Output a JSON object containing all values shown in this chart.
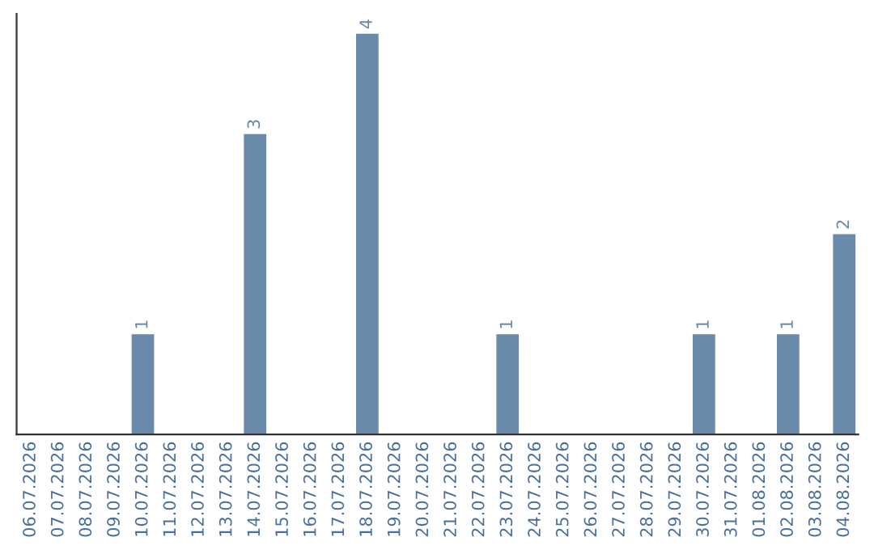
{
  "chart_data": {
    "type": "bar",
    "categories": [
      "06.07.2026",
      "07.07.2026",
      "08.07.2026",
      "09.07.2026",
      "10.07.2026",
      "11.07.2026",
      "12.07.2026",
      "13.07.2026",
      "14.07.2026",
      "15.07.2026",
      "16.07.2026",
      "17.07.2026",
      "18.07.2026",
      "19.07.2026",
      "20.07.2026",
      "21.07.2026",
      "22.07.2026",
      "23.07.2026",
      "24.07.2026",
      "25.07.2026",
      "26.07.2026",
      "27.07.2026",
      "28.07.2026",
      "29.07.2026",
      "30.07.2026",
      "31.07.2026",
      "01.08.2026",
      "02.08.2026",
      "03.08.2026",
      "04.08.2026"
    ],
    "values": [
      0,
      0,
      0,
      0,
      1,
      0,
      0,
      0,
      3,
      0,
      0,
      0,
      4,
      0,
      0,
      0,
      0,
      1,
      0,
      0,
      0,
      0,
      0,
      0,
      1,
      0,
      0,
      1,
      0,
      2
    ],
    "value_labels": [
      null,
      null,
      null,
      null,
      "1",
      null,
      null,
      null,
      "3",
      null,
      null,
      null,
      "4",
      null,
      null,
      null,
      null,
      "1",
      null,
      null,
      null,
      null,
      null,
      null,
      "1",
      null,
      null,
      "1",
      null,
      "2"
    ],
    "color": "#6a8aab",
    "grid": false
  }
}
